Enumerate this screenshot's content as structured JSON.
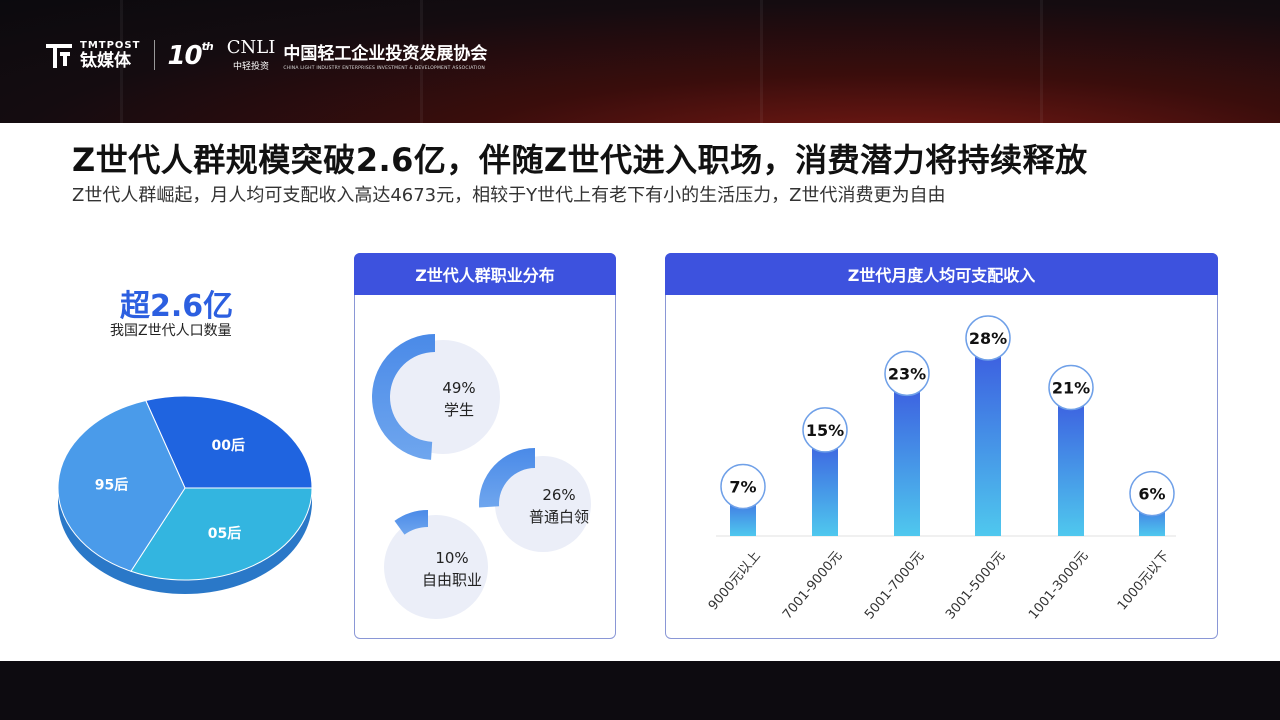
{
  "header": {
    "tmt_small": "TMTPOST",
    "tmt_big": "钛媒体",
    "tenth_num": "10",
    "tenth_sup": "th",
    "cnli_mark": "CNLI",
    "cnli_sub": "中轻投资",
    "assoc_cn": "中国轻工企业投资发展协会",
    "assoc_en": "CHINA LIGHT INDUSTRY ENTERPRISES INVESTMENT & DEVELOPMENT ASSOCIATION"
  },
  "title": "Z世代人群规模突破2.6亿，伴随Z世代进入职场，消费潜力将持续释放",
  "subtitle": "Z世代人群崛起，月人均可支配收入高达4673元，相较于Y世代上有老下有小的生活压力，Z世代消费更为自由",
  "population": {
    "value": "超2.6亿",
    "label": "我国Z世代人口数量"
  },
  "colors": {
    "accent": "#3d52de",
    "pie": [
      "#1f64e0",
      "#33b5e0",
      "#4a9bea"
    ],
    "ring": "#4a86e8"
  },
  "chart_data": [
    {
      "type": "pie",
      "categories": [
        "00后",
        "05后",
        "95后"
      ],
      "values": [
        30,
        32,
        38
      ]
    },
    {
      "type": "pie",
      "title": "Z世代人群职业分布",
      "categories": [
        "学生",
        "普通白领",
        "自由职业"
      ],
      "values": [
        49,
        26,
        10
      ],
      "labels": [
        "49%",
        "26%",
        "10%"
      ]
    },
    {
      "type": "bar",
      "title": "Z世代月度人均可支配收入",
      "categories": [
        "9000元以上",
        "7001-9000元",
        "5001-7000元",
        "3001-5000元",
        "1001-3000元",
        "1000元以下"
      ],
      "values": [
        7,
        15,
        23,
        28,
        21,
        6
      ],
      "labels": [
        "7%",
        "15%",
        "23%",
        "28%",
        "21%",
        "6%"
      ]
    }
  ]
}
